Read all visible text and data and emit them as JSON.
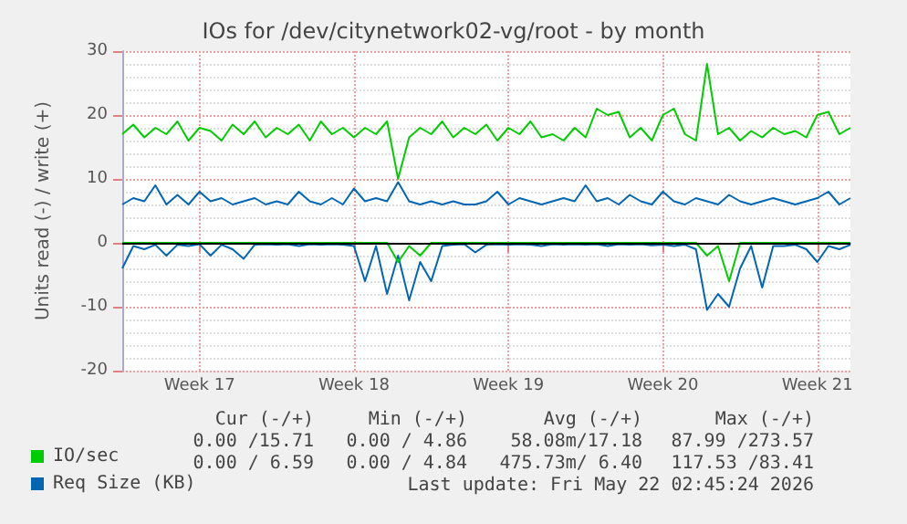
{
  "chart_data": {
    "type": "line",
    "title": "IOs for /dev/citynetwork02-vg/root - by month",
    "ylabel": "Units read (-) / write (+)",
    "categories": [
      null,
      null,
      null,
      null,
      null,
      null,
      null,
      "Week 17",
      null,
      null,
      null,
      null,
      null,
      null,
      null,
      null,
      null,
      null,
      null,
      null,
      null,
      "Week 18",
      null,
      null,
      null,
      null,
      null,
      null,
      null,
      null,
      null,
      null,
      null,
      null,
      null,
      "Week 19",
      null,
      null,
      null,
      null,
      null,
      null,
      null,
      null,
      null,
      null,
      null,
      null,
      null,
      "Week 20",
      null,
      null,
      null,
      null,
      null,
      null,
      null,
      null,
      null,
      null,
      null,
      null,
      null,
      "Week 21",
      null,
      null,
      null
    ],
    "series": [
      {
        "name": "IO/sec",
        "color": "#00cc00",
        "values": [
          17,
          18.5,
          16.5,
          18,
          17,
          19,
          16,
          18,
          17.5,
          16,
          18.5,
          17,
          19,
          16.5,
          18,
          17,
          18.5,
          16,
          19,
          17,
          18,
          16.5,
          18,
          17,
          19,
          10,
          16.5,
          18,
          17,
          19,
          16.5,
          18,
          17,
          18.5,
          16,
          18,
          17,
          19,
          16.5,
          17,
          16,
          18,
          16.5,
          21,
          20,
          20.5,
          16.5,
          18,
          16,
          20,
          21,
          17,
          16,
          28,
          17,
          18,
          16,
          17.5,
          16.5,
          18,
          17,
          17.5,
          16.5,
          20,
          20.5,
          17,
          18
        ]
      },
      {
        "name": "Req Size (KB)",
        "color": "#0066b3",
        "values": [
          6,
          7,
          6.5,
          9,
          6,
          7.5,
          6,
          8,
          6.5,
          7,
          6,
          6.5,
          7,
          6,
          6.5,
          6,
          8,
          6.5,
          6,
          7,
          6,
          8.5,
          6.5,
          7,
          6.5,
          9.5,
          6.5,
          6,
          6.5,
          6,
          6.5,
          6,
          6,
          6.5,
          8,
          6,
          7,
          6.5,
          6,
          6.5,
          7,
          6.5,
          9,
          6.5,
          7,
          6,
          7.5,
          6.5,
          6,
          8,
          6.5,
          6,
          7,
          6.5,
          6,
          7.5,
          6.5,
          6,
          6.5,
          7,
          6.5,
          6,
          6.5,
          7,
          8,
          6,
          7
        ]
      },
      {
        "color": "#0066b3",
        "values": [
          -4,
          -0.5,
          -1,
          -0.3,
          -2,
          -0.3,
          -0.5,
          -0.2,
          -2,
          -0.3,
          -1,
          -2.5,
          -0.3,
          -0.2,
          -0.3,
          -0.2,
          -0.5,
          -0.2,
          -0.3,
          -0.2,
          -0.3,
          -0.5,
          -6,
          -0.5,
          -8,
          -2,
          -9,
          -3,
          -6,
          -0.5,
          -0.3,
          -0.2,
          -1.5,
          -0.3,
          -0.2,
          -0.3,
          -0.2,
          -0.3,
          -0.5,
          -0.2,
          -0.3,
          -0.2,
          -0.3,
          -0.2,
          -0.5,
          -0.2,
          -0.3,
          -0.2,
          -0.4,
          -0.3,
          -0.5,
          -0.3,
          -1,
          -10.5,
          -8,
          -10,
          -4,
          -0.5,
          -7,
          -0.5,
          -0.5,
          -0.3,
          -1,
          -3,
          -0.5,
          -1,
          -0.3
        ]
      },
      {
        "color": "#00cc00",
        "values": [
          0,
          0,
          0,
          0,
          0,
          0,
          0,
          0,
          0,
          0,
          0,
          0,
          0,
          0,
          0,
          0,
          0,
          0,
          0,
          0,
          0,
          0,
          0,
          0,
          0,
          -3,
          -0.5,
          -2,
          0,
          0,
          0,
          0,
          0,
          0,
          0,
          0,
          0,
          0,
          0,
          0,
          0,
          0,
          0,
          0,
          0,
          0,
          0,
          0,
          0,
          0,
          0,
          0,
          0,
          -2,
          -0.5,
          -6,
          0,
          0,
          0,
          0,
          0,
          0,
          0,
          0,
          0,
          0,
          0
        ]
      }
    ],
    "ylim": [
      -20,
      30
    ],
    "yticks": [
      -20,
      -10,
      0,
      10,
      20,
      30
    ],
    "ref_lines": [
      {
        "axis": "y",
        "value": 0,
        "color": "#000000"
      }
    ],
    "annotations": [
      "Cur (-/+)",
      "Min (-/+)",
      "Avg (-/+)",
      "Max (-/+)",
      "0.00 /15.71",
      "0.00 / 4.86",
      "58.08m/17.18",
      "87.99 /273.57",
      "0.00 / 6.59",
      "0.00 / 4.84",
      "475.73m/ 6.40",
      "117.53 /83.41",
      "Last update: Fri May 22 02:45:24 2026"
    ],
    "grid": true,
    "legend": "bottom left",
    "marker": "none",
    "line_style": "solid"
  }
}
